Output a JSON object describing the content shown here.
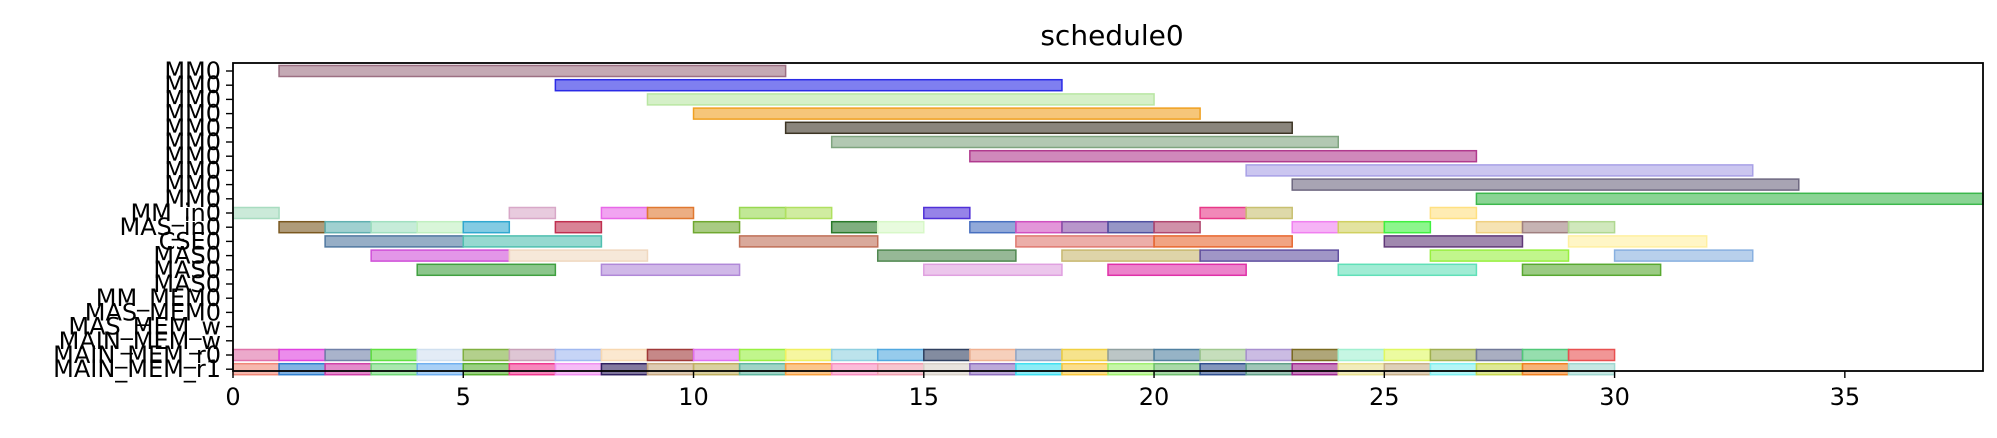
{
  "chart_data": {
    "type": "gantt",
    "title": "schedule0",
    "xlabel": "",
    "ylabel": "",
    "xlim": [
      0,
      38
    ],
    "x_ticks": [
      0,
      5,
      10,
      15,
      20,
      25,
      30,
      35
    ],
    "grid": false,
    "rows": [
      "MM0",
      "MM0",
      "MM0",
      "MM0",
      "MM0",
      "MM0",
      "MM0",
      "MM0",
      "MM0",
      "MM0",
      "MM_in0",
      "MAS_in0",
      "CSE0",
      "MAS0",
      "MAS0",
      "MAS0",
      "MM_MEM0",
      "MAS_MEM0",
      "MAS_MEM_w",
      "MAIN_MEM_w",
      "MAIN_MEM_r0",
      "MAIN_MEM_r1"
    ],
    "bars": [
      {
        "row": 0,
        "start": 1,
        "end": 12,
        "color": "#9c6f82"
      },
      {
        "row": 1,
        "start": 7,
        "end": 18,
        "color": "#2a2ae6"
      },
      {
        "row": 2,
        "start": 9,
        "end": 20,
        "color": "#b9e6a3"
      },
      {
        "row": 3,
        "start": 10,
        "end": 21,
        "color": "#f0a020"
      },
      {
        "row": 4,
        "start": 12,
        "end": 23,
        "color": "#3c3424"
      },
      {
        "row": 5,
        "start": 13,
        "end": 24,
        "color": "#7fa47f"
      },
      {
        "row": 6,
        "start": 16,
        "end": 27,
        "color": "#b03a8e"
      },
      {
        "row": 7,
        "start": 22,
        "end": 33,
        "color": "#a8a0e6"
      },
      {
        "row": 8,
        "start": 23,
        "end": 34,
        "color": "#6e6880"
      },
      {
        "row": 9,
        "start": 27,
        "end": 38,
        "color": "#3cb84c"
      },
      {
        "row": 10,
        "start": 0,
        "end": 1,
        "color": "#a8dcc0"
      },
      {
        "row": 10,
        "start": 6,
        "end": 7,
        "color": "#d8a8c8"
      },
      {
        "row": 10,
        "start": 8,
        "end": 9,
        "color": "#e868e8"
      },
      {
        "row": 10,
        "start": 9,
        "end": 10,
        "color": "#e07830"
      },
      {
        "row": 10,
        "start": 11,
        "end": 12,
        "color": "#98d850"
      },
      {
        "row": 10,
        "start": 12,
        "end": 13,
        "color": "#b0e060"
      },
      {
        "row": 10,
        "start": 15,
        "end": 16,
        "color": "#5030d8"
      },
      {
        "row": 10,
        "start": 21,
        "end": 22,
        "color": "#e83888"
      },
      {
        "row": 10,
        "start": 22,
        "end": 23,
        "color": "#c8c070"
      },
      {
        "row": 10,
        "start": 26,
        "end": 27,
        "color": "#ffe080"
      },
      {
        "row": 11,
        "start": 1,
        "end": 2,
        "color": "#7a5820"
      },
      {
        "row": 11,
        "start": 2,
        "end": 3,
        "color": "#60b0b0"
      },
      {
        "row": 11,
        "start": 3,
        "end": 4,
        "color": "#a0e0c0"
      },
      {
        "row": 11,
        "start": 4,
        "end": 5,
        "color": "#c0f0c0"
      },
      {
        "row": 11,
        "start": 5,
        "end": 6,
        "color": "#30a8d0"
      },
      {
        "row": 11,
        "start": 7,
        "end": 8,
        "color": "#c03050"
      },
      {
        "row": 11,
        "start": 10,
        "end": 11,
        "color": "#70a830"
      },
      {
        "row": 11,
        "start": 13,
        "end": 14,
        "color": "#2a7a2a"
      },
      {
        "row": 11,
        "start": 14,
        "end": 15,
        "color": "#d8f8c8"
      },
      {
        "row": 11,
        "start": 16,
        "end": 17,
        "color": "#4870c0"
      },
      {
        "row": 11,
        "start": 17,
        "end": 18,
        "color": "#d050c0"
      },
      {
        "row": 11,
        "start": 18,
        "end": 19,
        "color": "#8850a8"
      },
      {
        "row": 11,
        "start": 19,
        "end": 20,
        "color": "#5050a0"
      },
      {
        "row": 11,
        "start": 20,
        "end": 21,
        "color": "#b04870"
      },
      {
        "row": 11,
        "start": 23,
        "end": 24,
        "color": "#f080f0"
      },
      {
        "row": 11,
        "start": 24,
        "end": 25,
        "color": "#d0d060"
      },
      {
        "row": 11,
        "start": 25,
        "end": 26,
        "color": "#40f040"
      },
      {
        "row": 11,
        "start": 27,
        "end": 28,
        "color": "#f0d080"
      },
      {
        "row": 11,
        "start": 28,
        "end": 29,
        "color": "#a08080"
      },
      {
        "row": 11,
        "start": 29,
        "end": 30,
        "color": "#b0d890"
      },
      {
        "row": 12,
        "start": 2,
        "end": 5,
        "color": "#5078a0"
      },
      {
        "row": 12,
        "start": 5,
        "end": 8,
        "color": "#50c0b0"
      },
      {
        "row": 12,
        "start": 11,
        "end": 14,
        "color": "#c07058"
      },
      {
        "row": 12,
        "start": 17,
        "end": 20,
        "color": "#e07870"
      },
      {
        "row": 12,
        "start": 20,
        "end": 23,
        "color": "#e86830"
      },
      {
        "row": 12,
        "start": 25,
        "end": 28,
        "color": "#603878"
      },
      {
        "row": 12,
        "start": 29,
        "end": 32,
        "color": "#fff0a0"
      },
      {
        "row": 13,
        "start": 3,
        "end": 6,
        "color": "#d050d8"
      },
      {
        "row": 13,
        "start": 6,
        "end": 9,
        "color": "#f0d8c0"
      },
      {
        "row": 13,
        "start": 14,
        "end": 17,
        "color": "#508850"
      },
      {
        "row": 13,
        "start": 18,
        "end": 21,
        "color": "#c8b870"
      },
      {
        "row": 13,
        "start": 21,
        "end": 24,
        "color": "#6050a0"
      },
      {
        "row": 13,
        "start": 26,
        "end": 29,
        "color": "#98f040"
      },
      {
        "row": 13,
        "start": 30,
        "end": 33,
        "color": "#88b0e0"
      },
      {
        "row": 14,
        "start": 4,
        "end": 7,
        "color": "#40a040"
      },
      {
        "row": 14,
        "start": 8,
        "end": 11,
        "color": "#b088d8"
      },
      {
        "row": 14,
        "start": 15,
        "end": 18,
        "color": "#e0a0e0"
      },
      {
        "row": 14,
        "start": 19,
        "end": 22,
        "color": "#e030a8"
      },
      {
        "row": 14,
        "start": 24,
        "end": 27,
        "color": "#60e0b8"
      },
      {
        "row": 14,
        "start": 28,
        "end": 31,
        "color": "#58a830"
      },
      {
        "row": 20,
        "start": 0,
        "end": 1,
        "color": "#e070a8"
      },
      {
        "row": 20,
        "start": 1,
        "end": 2,
        "color": "#e040e0"
      },
      {
        "row": 20,
        "start": 2,
        "end": 3,
        "color": "#7080a8"
      },
      {
        "row": 20,
        "start": 3,
        "end": 4,
        "color": "#60e040"
      },
      {
        "row": 20,
        "start": 4,
        "end": 5,
        "color": "#d0e0f0"
      },
      {
        "row": 20,
        "start": 5,
        "end": 6,
        "color": "#80b040"
      },
      {
        "row": 20,
        "start": 6,
        "end": 7,
        "color": "#c8a0b8"
      },
      {
        "row": 20,
        "start": 7,
        "end": 8,
        "color": "#a0b8f0"
      },
      {
        "row": 20,
        "start": 8,
        "end": 9,
        "color": "#f8d8b0"
      },
      {
        "row": 20,
        "start": 9,
        "end": 10,
        "color": "#a03838"
      },
      {
        "row": 20,
        "start": 10,
        "end": 11,
        "color": "#e070f0"
      },
      {
        "row": 20,
        "start": 11,
        "end": 12,
        "color": "#98f040"
      },
      {
        "row": 20,
        "start": 12,
        "end": 13,
        "color": "#f0f060"
      },
      {
        "row": 20,
        "start": 13,
        "end": 14,
        "color": "#90d0e0"
      },
      {
        "row": 20,
        "start": 14,
        "end": 15,
        "color": "#50a8e0"
      },
      {
        "row": 20,
        "start": 15,
        "end": 16,
        "color": "#304060"
      },
      {
        "row": 20,
        "start": 16,
        "end": 17,
        "color": "#f0b090"
      },
      {
        "row": 20,
        "start": 17,
        "end": 18,
        "color": "#90a8c8"
      },
      {
        "row": 20,
        "start": 18,
        "end": 19,
        "color": "#f0d040"
      },
      {
        "row": 20,
        "start": 19,
        "end": 20,
        "color": "#90a0a0"
      },
      {
        "row": 20,
        "start": 20,
        "end": 21,
        "color": "#5080a0"
      },
      {
        "row": 20,
        "start": 21,
        "end": 22,
        "color": "#a0c890"
      },
      {
        "row": 20,
        "start": 22,
        "end": 23,
        "color": "#a890d0"
      },
      {
        "row": 20,
        "start": 23,
        "end": 24,
        "color": "#7a6a20"
      },
      {
        "row": 20,
        "start": 24,
        "end": 25,
        "color": "#a0f0d0"
      },
      {
        "row": 20,
        "start": 25,
        "end": 26,
        "color": "#e0f860"
      },
      {
        "row": 20,
        "start": 26,
        "end": 27,
        "color": "#a0b050"
      },
      {
        "row": 20,
        "start": 27,
        "end": 28,
        "color": "#707898"
      },
      {
        "row": 20,
        "start": 28,
        "end": 29,
        "color": "#50c878"
      },
      {
        "row": 20,
        "start": 29,
        "end": 30,
        "color": "#e85050"
      },
      {
        "row": 21,
        "start": 0,
        "end": 1,
        "color": "#f08878"
      },
      {
        "row": 21,
        "start": 1,
        "end": 2,
        "color": "#3080d0"
      },
      {
        "row": 21,
        "start": 2,
        "end": 3,
        "color": "#d040a8"
      },
      {
        "row": 21,
        "start": 3,
        "end": 4,
        "color": "#70d878"
      },
      {
        "row": 21,
        "start": 4,
        "end": 5,
        "color": "#70b0f0"
      },
      {
        "row": 21,
        "start": 5,
        "end": 6,
        "color": "#58b030"
      },
      {
        "row": 21,
        "start": 6,
        "end": 7,
        "color": "#f03890"
      },
      {
        "row": 21,
        "start": 7,
        "end": 8,
        "color": "#f090f0"
      },
      {
        "row": 21,
        "start": 8,
        "end": 9,
        "color": "#302060"
      },
      {
        "row": 21,
        "start": 9,
        "end": 10,
        "color": "#c8a880"
      },
      {
        "row": 21,
        "start": 10,
        "end": 11,
        "color": "#c0b060"
      },
      {
        "row": 21,
        "start": 11,
        "end": 12,
        "color": "#60b8a0"
      },
      {
        "row": 21,
        "start": 12,
        "end": 13,
        "color": "#f8a040"
      },
      {
        "row": 21,
        "start": 13,
        "end": 14,
        "color": "#f890c0"
      },
      {
        "row": 21,
        "start": 14,
        "end": 15,
        "color": "#f0a0b0"
      },
      {
        "row": 21,
        "start": 15,
        "end": 16,
        "color": "#d8d0c8"
      },
      {
        "row": 21,
        "start": 16,
        "end": 17,
        "color": "#9070c0"
      },
      {
        "row": 21,
        "start": 17,
        "end": 18,
        "color": "#40e0f0"
      },
      {
        "row": 21,
        "start": 18,
        "end": 19,
        "color": "#f8c840"
      },
      {
        "row": 21,
        "start": 19,
        "end": 20,
        "color": "#a0f070"
      },
      {
        "row": 21,
        "start": 20,
        "end": 21,
        "color": "#70c070"
      },
      {
        "row": 21,
        "start": 21,
        "end": 22,
        "color": "#305090"
      },
      {
        "row": 21,
        "start": 22,
        "end": 23,
        "color": "#60a088"
      },
      {
        "row": 21,
        "start": 23,
        "end": 24,
        "color": "#a02890"
      },
      {
        "row": 21,
        "start": 24,
        "end": 25,
        "color": "#e8e090"
      },
      {
        "row": 21,
        "start": 25,
        "end": 26,
        "color": "#c8b088"
      },
      {
        "row": 21,
        "start": 26,
        "end": 27,
        "color": "#80f0f0"
      },
      {
        "row": 21,
        "start": 27,
        "end": 28,
        "color": "#c8d850"
      },
      {
        "row": 21,
        "start": 28,
        "end": 29,
        "color": "#f08020"
      },
      {
        "row": 21,
        "start": 29,
        "end": 30,
        "color": "#a0d8d0"
      }
    ]
  }
}
